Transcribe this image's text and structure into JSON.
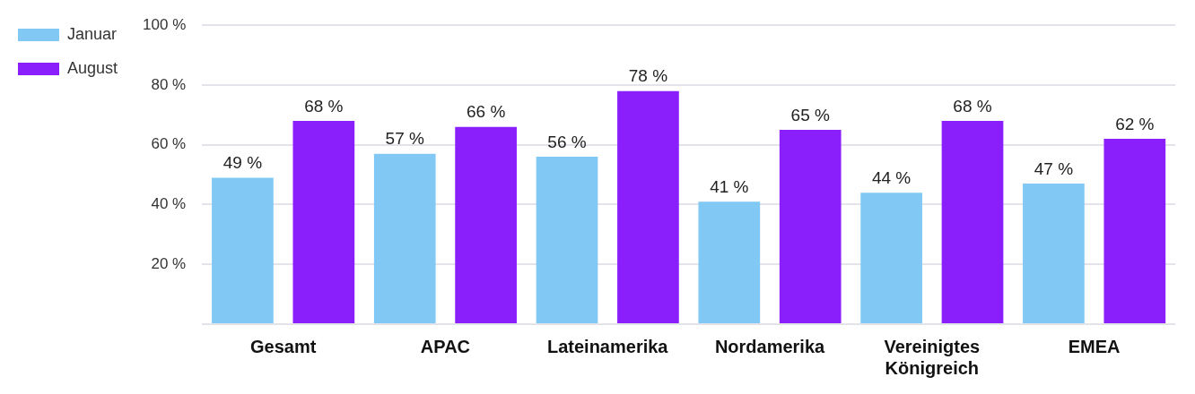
{
  "chart_data": {
    "type": "bar",
    "categories": [
      "Gesamt",
      "APAC",
      "Lateinamerika",
      "Nordamerika",
      "Vereinigtes Königreich",
      "EMEA"
    ],
    "series": [
      {
        "name": "Januar",
        "color": "#82c8f5",
        "values": [
          49,
          57,
          56,
          41,
          44,
          47
        ],
        "value_labels": [
          "49 %",
          "57 %",
          "56 %",
          "41 %",
          "44 %",
          "47 %"
        ]
      },
      {
        "name": "August",
        "color": "#8a1ffb",
        "values": [
          68,
          66,
          78,
          65,
          68,
          62
        ],
        "value_labels": [
          "68 %",
          "66 %",
          "78 %",
          "65 %",
          "68 %",
          "62 %"
        ]
      }
    ],
    "ylim": [
      0,
      100
    ],
    "yticks": [
      {
        "value": 0,
        "label": null
      },
      {
        "value": 20,
        "label": "20 %"
      },
      {
        "value": 40,
        "label": "40 %"
      },
      {
        "value": 60,
        "label": "60 %"
      },
      {
        "value": 80,
        "label": "80 %"
      },
      {
        "value": 100,
        "label": "100 %"
      }
    ],
    "grid": "y",
    "legend": "top left"
  }
}
